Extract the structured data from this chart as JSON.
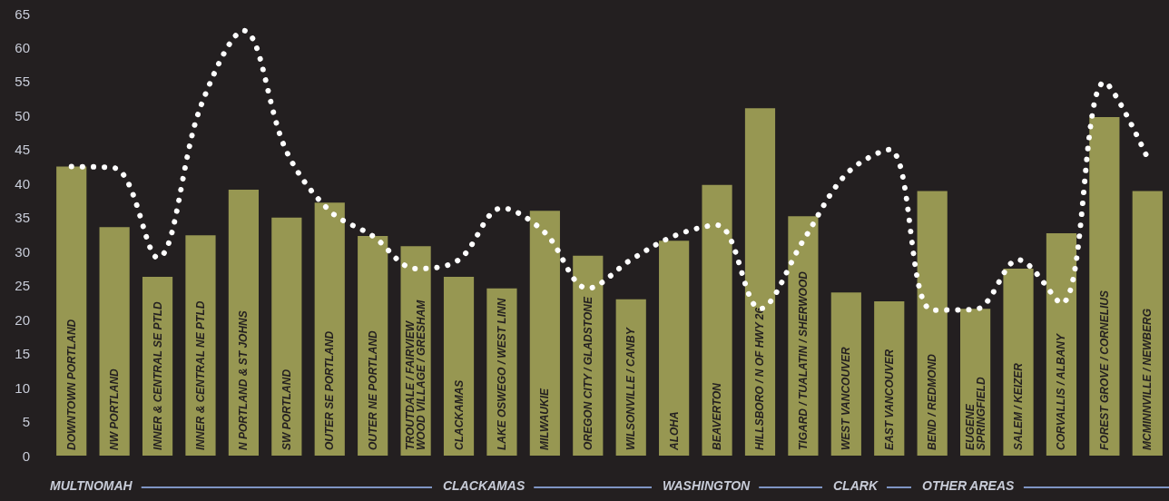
{
  "chart_data": {
    "type": "bar",
    "categories": [
      "DOWNTOWN PORTLAND",
      "NW PORTLAND",
      "INNER & CENTRAL SE PTLD",
      "INNER & CENTRAL NE PTLD",
      "N PORTLAND & ST JOHNS",
      "SW PORTLAND",
      "OUTER SE PORTLAND",
      "OUTER NE PORTLAND",
      "TROUTDALE / FAIRVIEW\nWOOD VILLAGE / GRESHAM",
      "CLACKAMAS",
      "LAKE OSWEGO / WEST LINN",
      "MILWAUKIE",
      "OREGON CITY / GLADSTONE",
      "WILSONVILLE / CANBY",
      "ALOHA",
      "BEAVERTON",
      "HILLSBORO / N OF HWY 26",
      "TIGARD / TUALATIN / SHERWOOD",
      "WEST VANCOUVER",
      "EAST VANCOUVER",
      "BEND / REDMOND",
      "EUGENE\nSPRINGFIELD",
      "SALEM / KEIZER",
      "CORVALLIS / ALBANY",
      "FOREST GROVE / CORNELIUS",
      "MCMINNVILLE / NEWBERG"
    ],
    "series": [
      {
        "color": "#979752",
        "values": [
          42.5,
          33.6,
          26.3,
          32.4,
          39.1,
          35.0,
          37.2,
          32.3,
          30.8,
          26.3,
          24.6,
          36.0,
          29.4,
          23.0,
          31.6,
          39.8,
          51.1,
          35.2,
          24.0,
          22.7,
          38.9,
          21.6,
          27.5,
          32.7,
          49.8,
          38.9
        ]
      },
      {
        "type": "line",
        "color": "#ffffff",
        "line_style": "dotted",
        "marker": "none",
        "values": [
          42.5,
          42.3,
          29.1,
          51.3,
          62.5,
          44.7,
          36.0,
          32.3,
          27.5,
          28.8,
          36.4,
          32.8,
          24.6,
          28.8,
          32.3,
          33.9,
          21.6,
          31.6,
          41.4,
          45.0,
          21.4,
          21.5,
          28.8,
          22.4,
          54.9,
          43.8
        ]
      }
    ],
    "ylim": [
      0,
      65
    ],
    "yticks": [
      0,
      5,
      10,
      15,
      20,
      25,
      30,
      35,
      40,
      45,
      50,
      55,
      60,
      65
    ],
    "grid": false,
    "legend": false,
    "annotations": [
      "MULTNOMAH",
      "CLACKAMAS",
      "WASHINGTON",
      "CLARK",
      "OTHER AREAS"
    ]
  }
}
